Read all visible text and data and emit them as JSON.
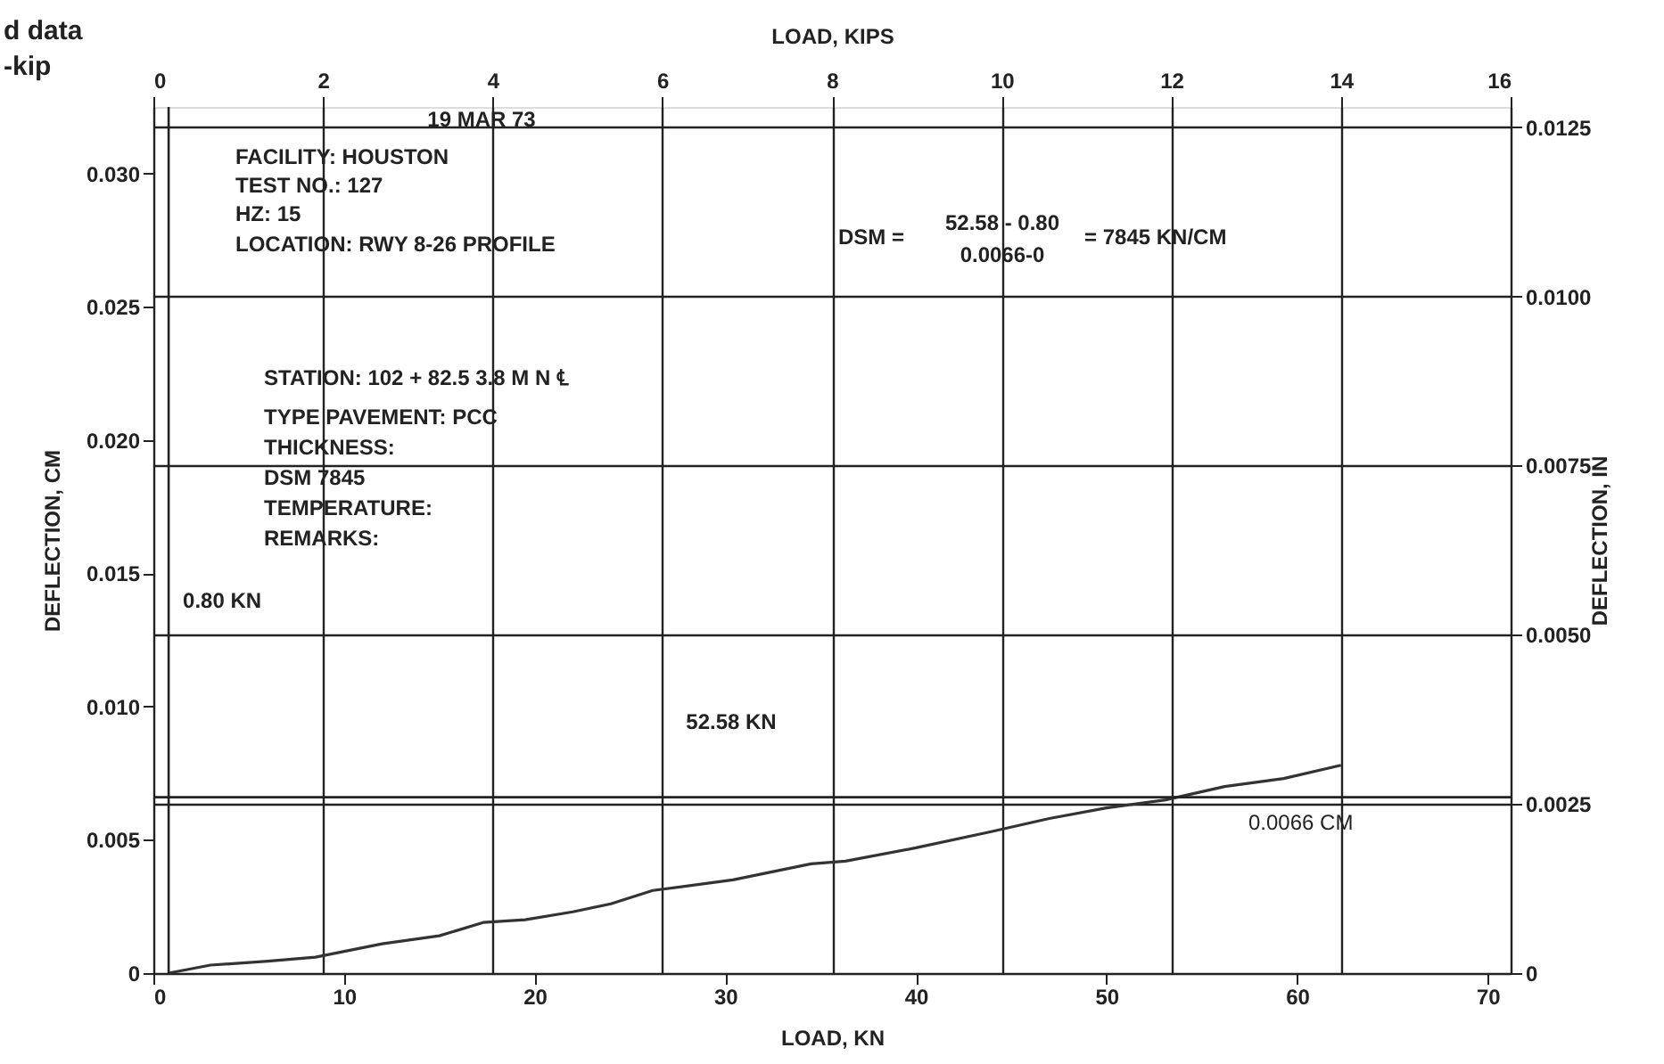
{
  "chart_data": {
    "type": "line",
    "xlabel": "LOAD, KN",
    "x2label": "LOAD, KIPS",
    "ylabel": "DEFLECTION, CM",
    "y2label": "DEFLECTION, IN",
    "x": [
      0.8,
      3,
      6,
      8.5,
      12,
      15,
      17.3,
      19.5,
      22,
      24,
      26.2,
      30.4,
      34.5,
      36.3,
      40,
      43.9,
      47,
      50,
      53.1,
      56.2,
      59.3,
      62.3
    ],
    "series": [
      {
        "color": "#333333",
        "values": [
          0,
          0.0003,
          0.00045,
          0.0006,
          0.0011,
          0.0014,
          0.0019,
          0.002,
          0.0023,
          0.0026,
          0.0031,
          0.0035,
          0.0041,
          0.0042,
          0.0047,
          0.0053,
          0.0058,
          0.0062,
          0.0065,
          0.007,
          0.0073,
          0.0078
        ]
      }
    ],
    "xlim": [
      0,
      71.2
    ],
    "xticks": [
      0,
      10,
      20,
      30,
      40,
      50,
      60,
      70
    ],
    "x2lim": [
      0,
      16
    ],
    "x2ticks": [
      0,
      2,
      4,
      6,
      8,
      10,
      12,
      14,
      16
    ],
    "ylim": [
      0,
      0.0325
    ],
    "yticks": [
      0,
      0.005,
      {
        "value": 0.01,
        "label": "0.010"
      },
      0.015,
      {
        "value": 0.02,
        "label": "0.020"
      },
      0.025,
      {
        "value": 0.03,
        "label": "0.030"
      }
    ],
    "y2lim": [
      0,
      0.0128
    ],
    "y2ticks": [
      0,
      0.0025,
      {
        "value": 0.005,
        "label": "0.0050"
      },
      0.0075,
      {
        "value": 0.01,
        "label": "0.0100"
      },
      0.0125
    ],
    "grid": true,
    "line_style": "solid",
    "ref_lines": [
      {
        "axis": "x",
        "value": 0.8,
        "label": "0.80 KN"
      },
      {
        "axis": "y",
        "value": 0.0066,
        "label": "0.0066 CM"
      }
    ],
    "annotations": [
      "d data",
      "-kip",
      "19 MAR 73",
      "FACILITY:  HOUSTON",
      "TEST NO.:  127",
      "HZ:  15",
      "LOCATION: RWY 8-26 PROFILE",
      "DSM =",
      "52.58 - 0.80",
      "0.0066-0",
      "= 7845 KN/CM",
      "STATION:  102 + 82.5 3.8 M N ℄",
      "TYPE PAVEMENT:  PCC",
      "THICKNESS:",
      "DSM    7845",
      "TEMPERATURE:",
      "REMARKS:",
      "52.58 KN"
    ]
  }
}
